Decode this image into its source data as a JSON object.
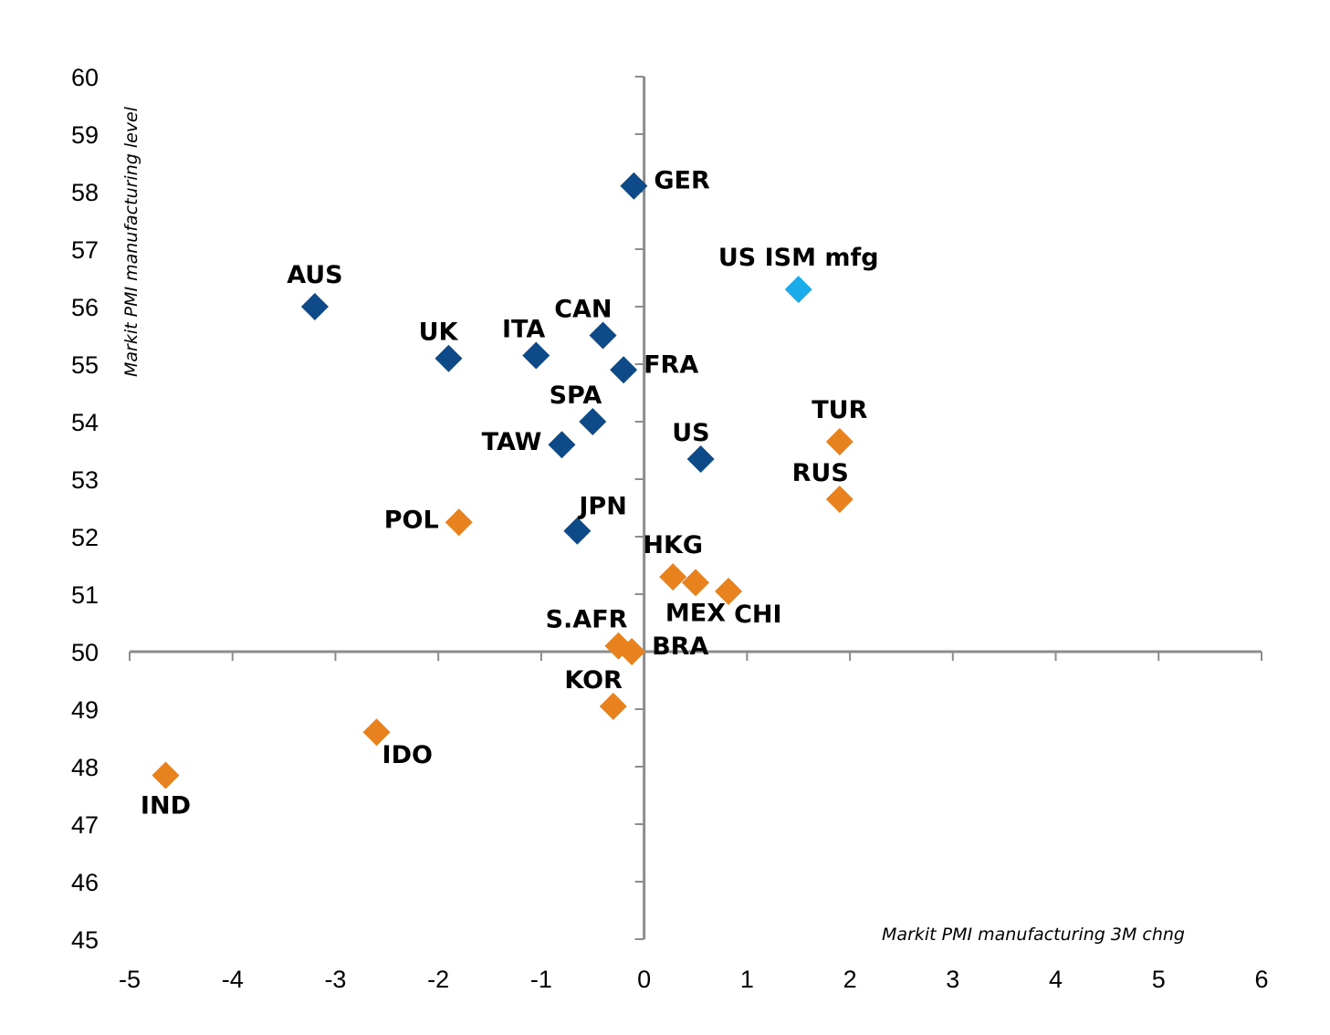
{
  "chart_data": {
    "type": "scatter",
    "xlabel": "Markit PMI manufacturing 3M chng",
    "ylabel": "Markit PMI manufacturing level",
    "xlim": [
      -5,
      6
    ],
    "ylim": [
      45,
      60
    ],
    "x_ticks": [
      "-5",
      "-4",
      "-3",
      "-2",
      "-1",
      "0",
      "1",
      "2",
      "3",
      "4",
      "5",
      "6"
    ],
    "y_ticks": [
      "45",
      "46",
      "47",
      "48",
      "49",
      "50",
      "51",
      "52",
      "53",
      "54",
      "55",
      "56",
      "57",
      "58",
      "59",
      "60"
    ],
    "grid": false,
    "legend": "none",
    "colors": {
      "developed": "#0d4a87",
      "emerging": "#e8821e",
      "us_ism": "#1aabeb",
      "axis": "#8c8c8c"
    },
    "points": [
      {
        "label": "GER",
        "x": -0.1,
        "y": 58.1,
        "group": "developed",
        "label_pos": "right"
      },
      {
        "label": "US ISM mfg",
        "x": 1.5,
        "y": 56.3,
        "group": "us_ism",
        "label_pos": "above"
      },
      {
        "label": "AUS",
        "x": -3.2,
        "y": 56.0,
        "group": "developed",
        "label_pos": "above"
      },
      {
        "label": "CAN",
        "x": -0.4,
        "y": 55.5,
        "group": "developed",
        "label_pos": "above-left"
      },
      {
        "label": "UK",
        "x": -1.9,
        "y": 55.1,
        "group": "developed",
        "label_pos": "above-left"
      },
      {
        "label": "ITA",
        "x": -1.05,
        "y": 55.15,
        "group": "developed",
        "label_pos": "above-left"
      },
      {
        "label": "FRA",
        "x": -0.2,
        "y": 54.9,
        "group": "developed",
        "label_pos": "right"
      },
      {
        "label": "SPA",
        "x": -0.5,
        "y": 54.0,
        "group": "developed",
        "label_pos": "above-left"
      },
      {
        "label": "TAW",
        "x": -0.8,
        "y": 53.6,
        "group": "developed",
        "label_pos": "left"
      },
      {
        "label": "US",
        "x": 0.55,
        "y": 53.35,
        "group": "developed",
        "label_pos": "above-left"
      },
      {
        "label": "JPN",
        "x": -0.65,
        "y": 52.1,
        "group": "developed",
        "label_pos": "above-right"
      },
      {
        "label": "TUR",
        "x": 1.9,
        "y": 53.65,
        "group": "emerging",
        "label_pos": "above"
      },
      {
        "label": "RUS",
        "x": 1.9,
        "y": 52.65,
        "group": "emerging",
        "label_pos": "above-left"
      },
      {
        "label": "POL",
        "x": -1.8,
        "y": 52.25,
        "group": "emerging",
        "label_pos": "left"
      },
      {
        "label": "HKG",
        "x": 0.28,
        "y": 51.3,
        "group": "emerging",
        "label_pos": "above"
      },
      {
        "label": "MEX",
        "x": 0.5,
        "y": 51.2,
        "group": "emerging",
        "label_pos": "below"
      },
      {
        "label": "CHI",
        "x": 0.82,
        "y": 51.05,
        "group": "emerging",
        "label_pos": "below-right"
      },
      {
        "label": "S.AFR",
        "x": -0.25,
        "y": 50.1,
        "group": "emerging",
        "label_pos": "above-left"
      },
      {
        "label": "BRA",
        "x": -0.12,
        "y": 50.0,
        "group": "emerging",
        "label_pos": "right"
      },
      {
        "label": "KOR",
        "x": -0.3,
        "y": 49.05,
        "group": "emerging",
        "label_pos": "above-left"
      },
      {
        "label": "IDO",
        "x": -2.6,
        "y": 48.6,
        "group": "emerging",
        "label_pos": "below-right"
      },
      {
        "label": "IND",
        "x": -4.65,
        "y": 47.85,
        "group": "emerging",
        "label_pos": "below"
      }
    ]
  }
}
